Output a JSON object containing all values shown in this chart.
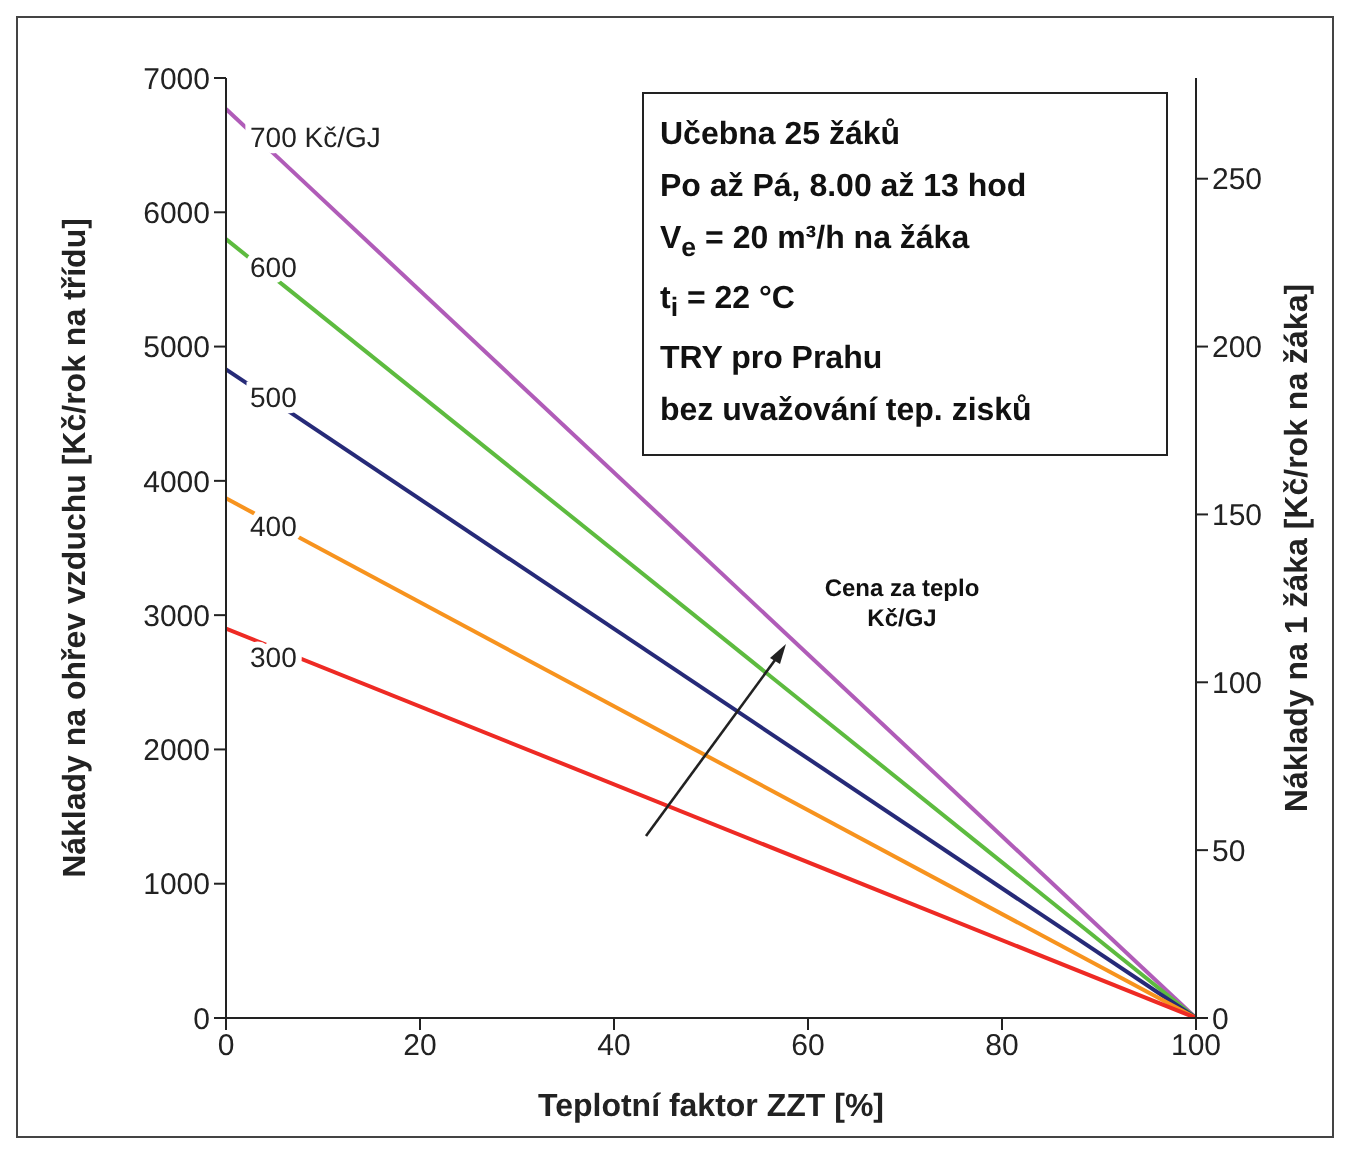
{
  "chart_data": {
    "type": "line",
    "xlabel": "Teplotní faktor ZZT [%]",
    "ylabel": "Náklady na ohřev vzduchu [Kč/rok na třídu]",
    "y2label": "Náklady na 1 žáka [Kč/rok na žáka]",
    "x": [
      0,
      100
    ],
    "series": [
      {
        "name": "700 Kč/GJ",
        "color": "#b05cb8",
        "values": [
          6770,
          0
        ]
      },
      {
        "name": "600",
        "color": "#5dbb3f",
        "values": [
          5800,
          0
        ]
      },
      {
        "name": "500",
        "color": "#262a78",
        "values": [
          4830,
          0
        ]
      },
      {
        "name": "400",
        "color": "#f7931e",
        "values": [
          3870,
          0
        ]
      },
      {
        "name": "300",
        "color": "#ee2a24",
        "values": [
          2900,
          0
        ]
      }
    ],
    "xlim": [
      0,
      100
    ],
    "xticks": [
      0,
      20,
      40,
      60,
      80,
      100
    ],
    "ylim": [
      0,
      7000
    ],
    "yticks": [
      0,
      1000,
      2000,
      3000,
      4000,
      5000,
      6000,
      7000
    ],
    "y2lim": [
      0,
      280
    ],
    "y2ticks": [
      0,
      50,
      100,
      150,
      200,
      250
    ],
    "marker": "none",
    "line_style": "solid",
    "annotations": [
      "Učebna 25 žáků",
      "Po až Pá, 8.00 až 13 hod",
      "V$_{e}$ = 20 m³/h na žáka",
      "t$_{i}$ = 22 °C",
      "TRY pro Prahu",
      "bez uvažování tep. zisků",
      "Cena za teplo\nKč/GJ"
    ]
  }
}
